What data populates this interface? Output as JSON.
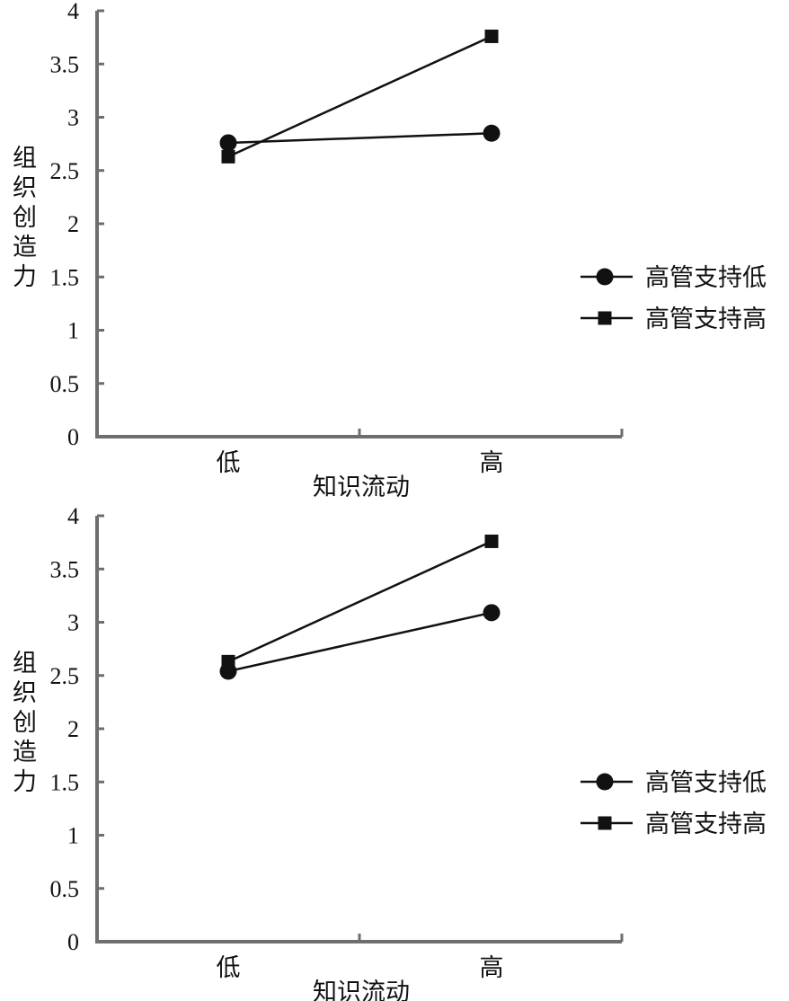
{
  "chart_data": [
    {
      "type": "line",
      "categories": [
        "低",
        "高"
      ],
      "xlabel": "知识流动",
      "ylabel": "组织创造力",
      "ylim": [
        0,
        4
      ],
      "yticks": [
        "0",
        "0.5",
        "1",
        "1.5",
        "2",
        "2.5",
        "3",
        "3.5",
        "4"
      ],
      "legend_position": "right",
      "grid": false,
      "series": [
        {
          "name": "高管支持低",
          "marker": "circle",
          "values": [
            2.76,
            2.85
          ]
        },
        {
          "name": "高管支持高",
          "marker": "square",
          "values": [
            2.63,
            3.76
          ]
        }
      ]
    },
    {
      "type": "line",
      "categories": [
        "低",
        "高"
      ],
      "xlabel": "知识流动",
      "ylabel": "组织创造力",
      "ylim": [
        0,
        4
      ],
      "yticks": [
        "0",
        "0.5",
        "1",
        "1.5",
        "2",
        "2.5",
        "3",
        "3.5",
        "4"
      ],
      "legend_position": "right",
      "grid": false,
      "series": [
        {
          "name": "高管支持低",
          "marker": "circle",
          "values": [
            2.54,
            3.09
          ]
        },
        {
          "name": "高管支持高",
          "marker": "square",
          "values": [
            2.63,
            3.76
          ]
        }
      ]
    }
  ]
}
